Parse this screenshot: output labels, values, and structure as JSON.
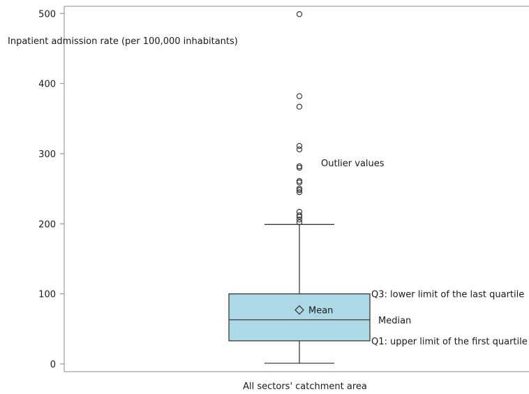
{
  "chart_data": {
    "type": "box",
    "category": "All sectors' catchment area",
    "ylabel": "Inpatient admission rate (per 100,000 inhabitants)",
    "ylim": [
      0,
      510
    ],
    "yticks": [
      0,
      100,
      200,
      300,
      400,
      500
    ],
    "box": {
      "whisker_low": 1,
      "q1": 33,
      "median": 63,
      "q3": 100,
      "whisker_high": 199,
      "mean": 77
    },
    "outliers": [
      202,
      206,
      210,
      212,
      217,
      245,
      248,
      250,
      259,
      261,
      280,
      282,
      306,
      311,
      367,
      382,
      499
    ],
    "annotations": {
      "outliers": "Outlier values",
      "q3": "Q3: lower limit of the last quartile",
      "median": "Median",
      "q1": "Q1: upper limit of the first quartile",
      "mean": "Mean"
    },
    "colors": {
      "box_fill": "#add8e6",
      "stroke": "#3a3a3a",
      "axis": "#888888"
    },
    "grid": false
  }
}
